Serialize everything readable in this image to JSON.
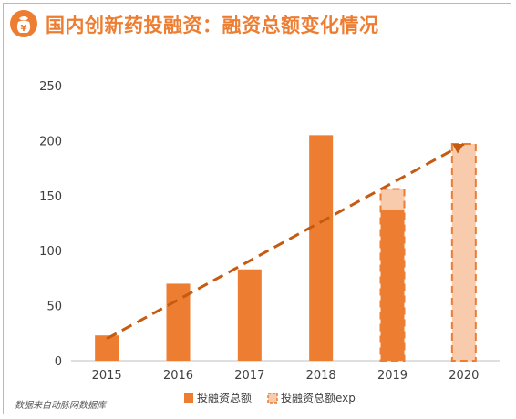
{
  "title": "国内创新药投融资：融资总额变化情况",
  "source": "数据来自动脉网数据库",
  "logo_icon": "money-bag-yen-icon",
  "logo_glyph": "¥",
  "colors": {
    "accent": "#ed7d31",
    "bar": "#ed7d31",
    "exp_fill": "#f8cbad",
    "trend": "#c55a11",
    "axis_text": "#404040"
  },
  "chart_data": {
    "type": "bar",
    "categories": [
      "2015",
      "2016",
      "2017",
      "2018",
      "2019",
      "2020"
    ],
    "series": [
      {
        "name": "投融资总额",
        "values": [
          23,
          70,
          83,
          205,
          137,
          null
        ]
      },
      {
        "name": "投融资总额exp",
        "values": [
          null,
          null,
          null,
          null,
          156,
          197
        ]
      }
    ],
    "trendline": {
      "style": "dashed",
      "from": [
        "2015",
        20
      ],
      "to": [
        "2020",
        197
      ]
    },
    "ylim": [
      0,
      250
    ],
    "yticks": [
      0,
      50,
      100,
      150,
      200,
      250
    ],
    "xlabel": "",
    "ylabel": "",
    "grid": false,
    "legend_position": "bottom"
  }
}
